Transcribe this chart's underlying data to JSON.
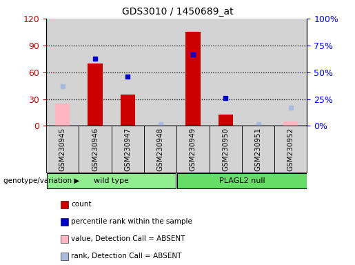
{
  "title": "GDS3010 / 1450689_at",
  "samples": [
    "GSM230945",
    "GSM230946",
    "GSM230947",
    "GSM230948",
    "GSM230949",
    "GSM230950",
    "GSM230951",
    "GSM230952"
  ],
  "count_bars": [
    null,
    70,
    35,
    null,
    105,
    13,
    null,
    null
  ],
  "percentile_rank": [
    null,
    75,
    55,
    null,
    80,
    31,
    null,
    null
  ],
  "absent_value": [
    25,
    null,
    null,
    null,
    null,
    null,
    null,
    5
  ],
  "absent_rank": [
    44,
    null,
    null,
    2,
    null,
    null,
    2,
    20
  ],
  "ylim_left": [
    0,
    120
  ],
  "ylim_right": [
    0,
    100
  ],
  "yticks_left": [
    0,
    30,
    60,
    90,
    120
  ],
  "yticks_right": [
    0,
    25,
    50,
    75,
    100
  ],
  "yticklabels_left": [
    "0",
    "30",
    "60",
    "90",
    "120"
  ],
  "yticklabels_right": [
    "0%",
    "25%",
    "50%",
    "75%",
    "100%"
  ],
  "bar_color": "#cc0000",
  "rank_color": "#0000cc",
  "absent_val_color": "#ffb6c1",
  "absent_rank_color": "#aabbdd",
  "plot_bg_color": "#d3d3d3",
  "xtick_bg_color": "#d3d3d3",
  "group_color_wt": "#90ee90",
  "group_color_null": "#66dd66",
  "legend_items": [
    {
      "color": "#cc0000",
      "label": "count",
      "marker": "square"
    },
    {
      "color": "#0000cc",
      "label": "percentile rank within the sample",
      "marker": "square"
    },
    {
      "color": "#ffb6c1",
      "label": "value, Detection Call = ABSENT",
      "marker": "square"
    },
    {
      "color": "#aabbdd",
      "label": "rank, Detection Call = ABSENT",
      "marker": "square"
    }
  ],
  "group_wt_label": "wild type",
  "group_null_label": "PLAGL2 null",
  "genotype_label": "genotype/variation ▶"
}
